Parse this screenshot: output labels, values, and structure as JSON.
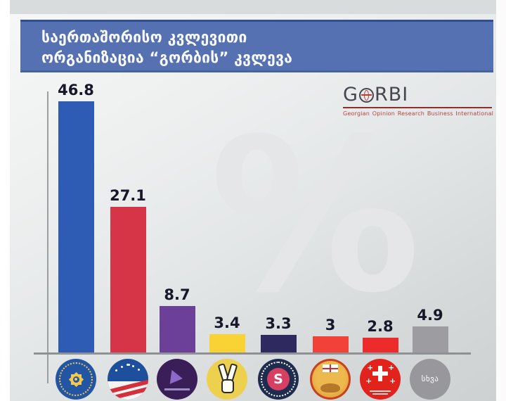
{
  "header": {
    "title_line1": "საერთაშორისო კვლევითი",
    "title_line2": "ორგანიზაცია “გორბის” კვლევა",
    "bg_color": "#5571b2"
  },
  "gorbi": {
    "name_left": "G",
    "name_right": "RBI",
    "subtitle": "Georgian Opinion Research Business International",
    "accent_color": "#b5443c"
  },
  "watermark": "%",
  "chart_data": {
    "type": "bar",
    "title": "საერთაშორისო კვლევითი ორგანიზაცია “გორბის” კვლევა (GORBI)",
    "unit": "%",
    "ylim": [
      0,
      50
    ],
    "grid": false,
    "legend": "party logos shown below bars instead of text labels",
    "categories": [
      "party-blue-sun-emblem",
      "party-blue-white-red-flag",
      "party-purple-arrow",
      "party-yellow-victory-hand",
      "party-navy-crimson-s",
      "party-gold-eagle-flag",
      "party-red-five-crosses",
      "other"
    ],
    "values": [
      46.8,
      27.1,
      8.7,
      3.4,
      3.3,
      3,
      2.8,
      4.9
    ],
    "labels": [
      "46.8",
      "27.1",
      "8.7",
      "3.4",
      "3.3",
      "3",
      "2.8",
      "4.9"
    ],
    "bar_colors": [
      "#2e5cb4",
      "#d63447",
      "#6c3f99",
      "#f9d334",
      "#2e2a60",
      "#f24138",
      "#ed2b2b",
      "#9d9da1"
    ]
  },
  "logos": {
    "s_mark": "S",
    "other_label": "სხვა"
  }
}
